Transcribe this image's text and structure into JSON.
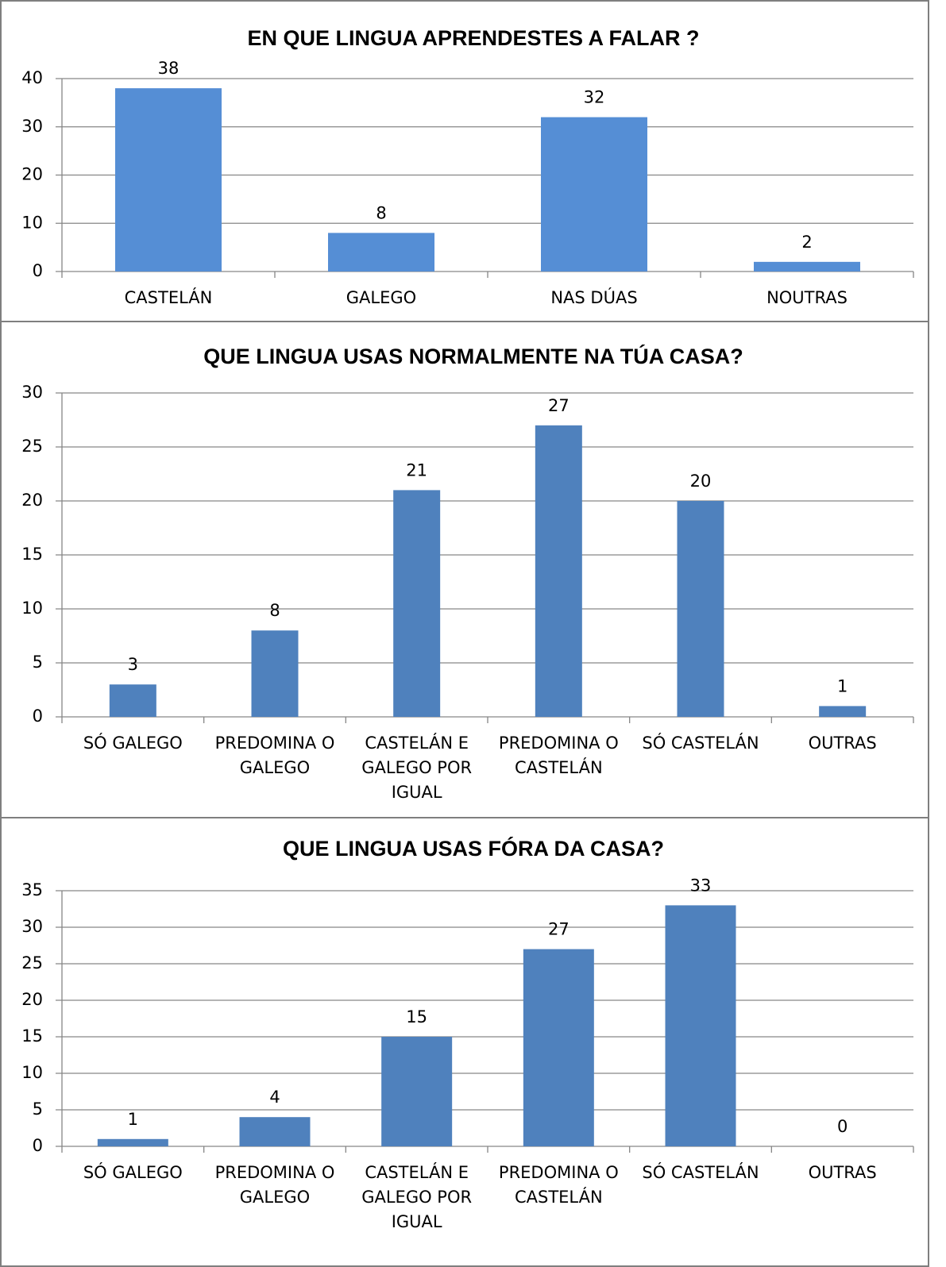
{
  "chart_data": [
    {
      "type": "bar",
      "title": "EN QUE LINGUA APRENDESTES A FALAR ?",
      "categories": [
        "CASTELÁN",
        "GALEGO",
        "NAS DÚAS",
        "NOUTRAS"
      ],
      "values": [
        38,
        8,
        32,
        2
      ],
      "color": "#558ed5",
      "ylim": [
        0,
        40
      ],
      "yticks": [
        0,
        10,
        20,
        30,
        40
      ],
      "grid": true
    },
    {
      "type": "bar",
      "title": "QUE LINGUA USAS NORMALMENTE NA TÚA CASA?",
      "categories": [
        "SÓ GALEGO",
        "PREDOMINA O GALEGO",
        "CASTELÁN E GALEGO POR IGUAL",
        "PREDOMINA O CASTELÁN",
        "SÓ CASTELÁN",
        "OUTRAS"
      ],
      "values": [
        3,
        8,
        21,
        27,
        20,
        1
      ],
      "color": "#4f81bd",
      "ylim": [
        0,
        30
      ],
      "yticks": [
        0,
        5,
        10,
        15,
        20,
        25,
        30
      ],
      "grid": true
    },
    {
      "type": "bar",
      "title": "QUE LINGUA USAS FÓRA DA CASA?",
      "categories": [
        "SÓ GALEGO",
        "PREDOMINA O GALEGO",
        "CASTELÁN E GALEGO POR IGUAL",
        "PREDOMINA O CASTELÁN",
        "SÓ CASTELÁN",
        "OUTRAS"
      ],
      "values": [
        1,
        4,
        15,
        27,
        33,
        0
      ],
      "color": "#4f81bd",
      "ylim": [
        0,
        35
      ],
      "yticks": [
        0,
        5,
        10,
        15,
        20,
        25,
        30,
        35
      ],
      "grid": true
    }
  ]
}
